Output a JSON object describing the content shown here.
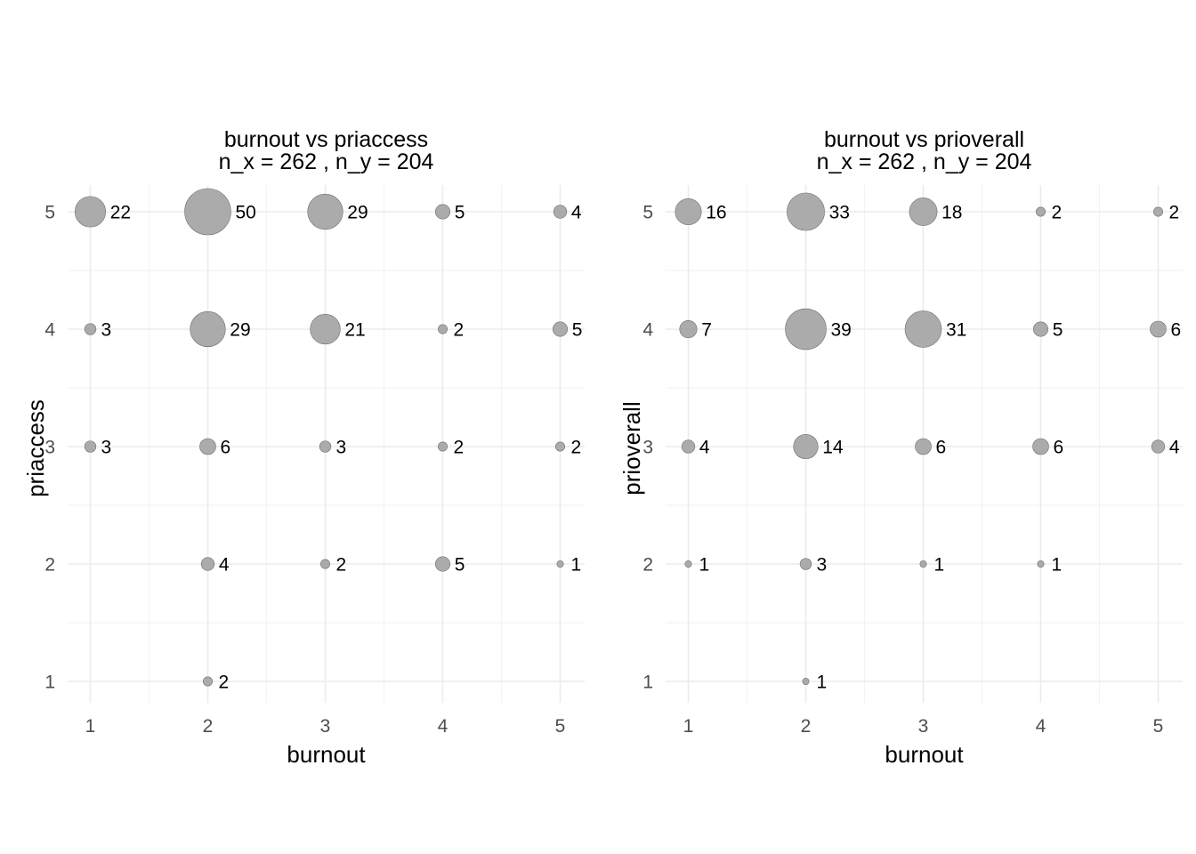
{
  "chart_data": [
    {
      "type": "scatter",
      "title": "burnout vs priaccess",
      "subtitle": "n_x = 262 , n_y = 204",
      "xlabel": "burnout",
      "ylabel": "priaccess",
      "xlim": [
        1,
        5
      ],
      "ylim": [
        1,
        5
      ],
      "x_ticks": [
        "1",
        "2",
        "3",
        "4",
        "5"
      ],
      "y_ticks": [
        "1",
        "2",
        "3",
        "4",
        "5"
      ],
      "grid": true,
      "color": "#a6a6a6",
      "points": [
        {
          "x": 1,
          "y": 5,
          "n": 22
        },
        {
          "x": 2,
          "y": 5,
          "n": 50
        },
        {
          "x": 3,
          "y": 5,
          "n": 29
        },
        {
          "x": 4,
          "y": 5,
          "n": 5
        },
        {
          "x": 5,
          "y": 5,
          "n": 4
        },
        {
          "x": 1,
          "y": 4,
          "n": 3
        },
        {
          "x": 2,
          "y": 4,
          "n": 29
        },
        {
          "x": 3,
          "y": 4,
          "n": 21
        },
        {
          "x": 4,
          "y": 4,
          "n": 2
        },
        {
          "x": 5,
          "y": 4,
          "n": 5
        },
        {
          "x": 1,
          "y": 3,
          "n": 3
        },
        {
          "x": 2,
          "y": 3,
          "n": 6
        },
        {
          "x": 3,
          "y": 3,
          "n": 3
        },
        {
          "x": 4,
          "y": 3,
          "n": 2
        },
        {
          "x": 5,
          "y": 3,
          "n": 2
        },
        {
          "x": 2,
          "y": 2,
          "n": 4
        },
        {
          "x": 3,
          "y": 2,
          "n": 2
        },
        {
          "x": 4,
          "y": 2,
          "n": 5
        },
        {
          "x": 5,
          "y": 2,
          "n": 1
        },
        {
          "x": 2,
          "y": 1,
          "n": 2
        }
      ]
    },
    {
      "type": "scatter",
      "title": "burnout vs prioverall",
      "subtitle": "n_x = 262 , n_y = 204",
      "xlabel": "burnout",
      "ylabel": "prioverall",
      "xlim": [
        1,
        5
      ],
      "ylim": [
        1,
        5
      ],
      "x_ticks": [
        "1",
        "2",
        "3",
        "4",
        "5"
      ],
      "y_ticks": [
        "1",
        "2",
        "3",
        "4",
        "5"
      ],
      "grid": true,
      "color": "#a6a6a6",
      "points": [
        {
          "x": 1,
          "y": 5,
          "n": 16
        },
        {
          "x": 2,
          "y": 5,
          "n": 33
        },
        {
          "x": 3,
          "y": 5,
          "n": 18
        },
        {
          "x": 4,
          "y": 5,
          "n": 2
        },
        {
          "x": 5,
          "y": 5,
          "n": 2
        },
        {
          "x": 1,
          "y": 4,
          "n": 7
        },
        {
          "x": 2,
          "y": 4,
          "n": 39
        },
        {
          "x": 3,
          "y": 4,
          "n": 31
        },
        {
          "x": 4,
          "y": 4,
          "n": 5
        },
        {
          "x": 5,
          "y": 4,
          "n": 6
        },
        {
          "x": 1,
          "y": 3,
          "n": 4
        },
        {
          "x": 2,
          "y": 3,
          "n": 14
        },
        {
          "x": 3,
          "y": 3,
          "n": 6
        },
        {
          "x": 4,
          "y": 3,
          "n": 6
        },
        {
          "x": 5,
          "y": 3,
          "n": 4
        },
        {
          "x": 1,
          "y": 2,
          "n": 1
        },
        {
          "x": 2,
          "y": 2,
          "n": 3
        },
        {
          "x": 3,
          "y": 2,
          "n": 1
        },
        {
          "x": 4,
          "y": 2,
          "n": 1
        },
        {
          "x": 2,
          "y": 1,
          "n": 1
        }
      ]
    }
  ]
}
